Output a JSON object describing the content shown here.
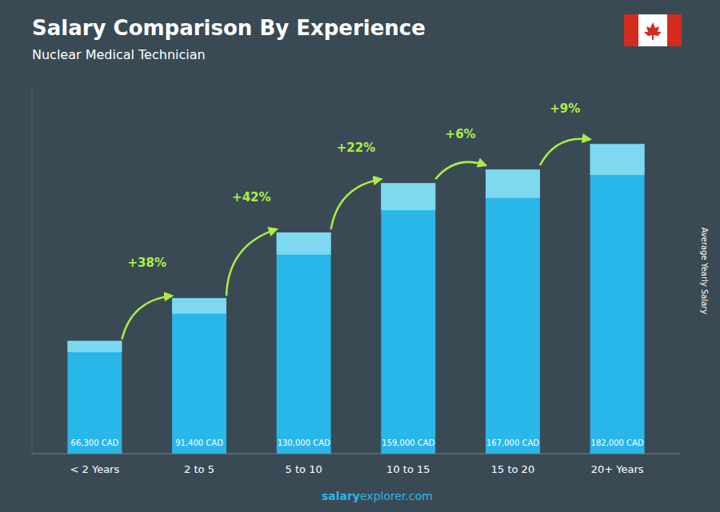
{
  "chart_data": {
    "type": "bar",
    "title": "Salary Comparison By Experience",
    "subtitle": "Nuclear Medical Technician",
    "ylabel": "Average Yearly Salary",
    "categories": [
      "< 2 Years",
      "2 to 5",
      "5 to 10",
      "10 to 15",
      "15 to 20",
      "20+ Years"
    ],
    "values": [
      66300,
      91400,
      130000,
      159000,
      167000,
      182000
    ],
    "value_labels": [
      "66,300 CAD",
      "91,400 CAD",
      "130,000 CAD",
      "159,000 CAD",
      "167,000 CAD",
      "182,000 CAD"
    ],
    "data_labels": true,
    "annotations": [
      "+38%",
      "+42%",
      "+22%",
      "+6%",
      "+9%"
    ],
    "watermark": [
      "salary",
      "explorer.com"
    ],
    "color": "#29b6e8",
    "ylim": [
      0,
      215000
    ],
    "grid": false,
    "tick_labels": "x"
  }
}
